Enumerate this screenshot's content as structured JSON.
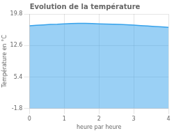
{
  "chart_data": {
    "type": "area",
    "title": "Evolution de la température",
    "xlabel": "heure par heure",
    "ylabel": "Température en °C",
    "x": [
      0,
      0.2,
      0.4,
      0.6,
      0.8,
      1.0,
      1.2,
      1.4,
      1.6,
      1.8,
      2.0,
      2.2,
      2.4,
      2.6,
      2.8,
      3.0,
      3.2,
      3.4,
      3.6,
      3.8,
      4.0
    ],
    "values": [
      17.1,
      17.2,
      17.3,
      17.4,
      17.45,
      17.55,
      17.6,
      17.65,
      17.65,
      17.6,
      17.55,
      17.5,
      17.45,
      17.4,
      17.35,
      17.25,
      17.15,
      17.05,
      16.95,
      16.85,
      16.75
    ],
    "xlim": [
      0,
      4
    ],
    "ylim": [
      -1.8,
      19.8
    ],
    "xticks": [
      0,
      1,
      2,
      3,
      4
    ],
    "yticks": [
      -1.8,
      5.4,
      12.6,
      19.8
    ],
    "grid": true
  }
}
